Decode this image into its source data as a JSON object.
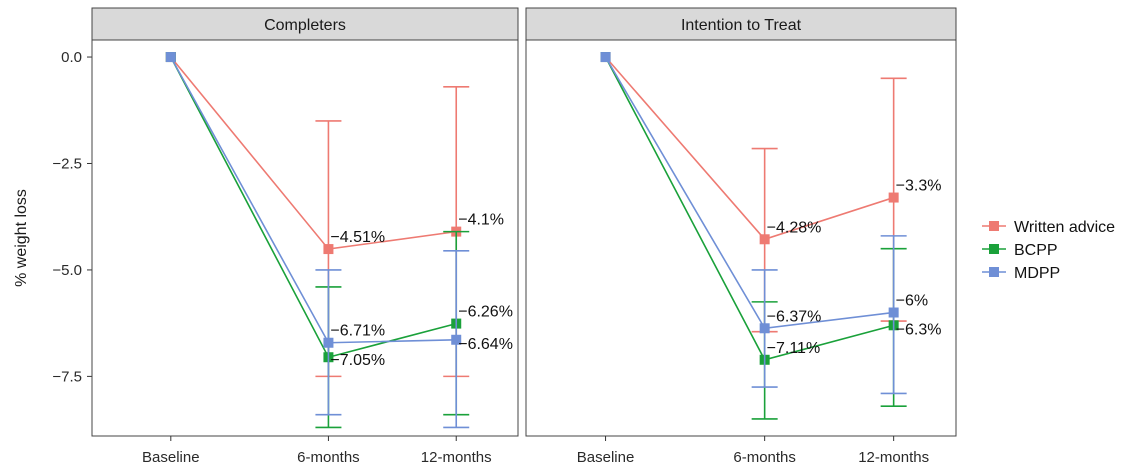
{
  "chart_data": {
    "type": "line",
    "ylabel": "% weight loss",
    "ylim": [
      -8.9,
      0.4
    ],
    "yticks": [
      0.0,
      -2.5,
      -5.0,
      -7.5
    ],
    "ytick_labels": [
      "0.0",
      "−2.5",
      "−5.0",
      "−7.5"
    ],
    "categories": [
      "Baseline",
      "6-months",
      "12-months"
    ],
    "grid": false,
    "legend_position": "right",
    "series_meta": [
      {
        "name": "Written advice",
        "color": "#ee7a72"
      },
      {
        "name": "BCPP",
        "color": "#1aa13a"
      },
      {
        "name": "MDPP",
        "color": "#6f8fd6"
      }
    ],
    "panels": [
      {
        "title": "Completers",
        "series": [
          {
            "name": "Written advice",
            "values": [
              0,
              -4.51,
              -4.1
            ],
            "lower": [
              null,
              -7.5,
              -7.5
            ],
            "upper": [
              null,
              -1.5,
              -0.7
            ],
            "labels": [
              null,
              "−4.51%",
              "−4.1%"
            ]
          },
          {
            "name": "BCPP",
            "values": [
              0,
              -7.05,
              -6.26
            ],
            "lower": [
              null,
              -8.7,
              -8.4
            ],
            "upper": [
              null,
              -5.4,
              -4.1
            ],
            "labels": [
              null,
              "−7.05%",
              "−6.26%"
            ]
          },
          {
            "name": "MDPP",
            "values": [
              0,
              -6.71,
              -6.64
            ],
            "lower": [
              null,
              -8.4,
              -8.7
            ],
            "upper": [
              null,
              -5.0,
              -4.55
            ],
            "labels": [
              null,
              "−6.71%",
              "−6.64%"
            ]
          }
        ]
      },
      {
        "title": "Intention to Treat",
        "series": [
          {
            "name": "Written advice",
            "values": [
              0,
              -4.28,
              -3.3
            ],
            "lower": [
              null,
              -6.45,
              -6.2
            ],
            "upper": [
              null,
              -2.15,
              -0.5
            ],
            "labels": [
              null,
              "−4.28%",
              "−3.3%"
            ]
          },
          {
            "name": "BCPP",
            "values": [
              0,
              -7.11,
              -6.3
            ],
            "lower": [
              null,
              -8.5,
              -8.2
            ],
            "upper": [
              null,
              -5.75,
              -4.5
            ],
            "labels": [
              null,
              "−7.11%",
              "−6.3%"
            ]
          },
          {
            "name": "MDPP",
            "values": [
              0,
              -6.37,
              -6.0
            ],
            "lower": [
              null,
              -7.75,
              -7.9
            ],
            "upper": [
              null,
              -5.0,
              -4.2
            ],
            "labels": [
              null,
              "−6.37%",
              "−6%"
            ]
          }
        ]
      }
    ]
  }
}
